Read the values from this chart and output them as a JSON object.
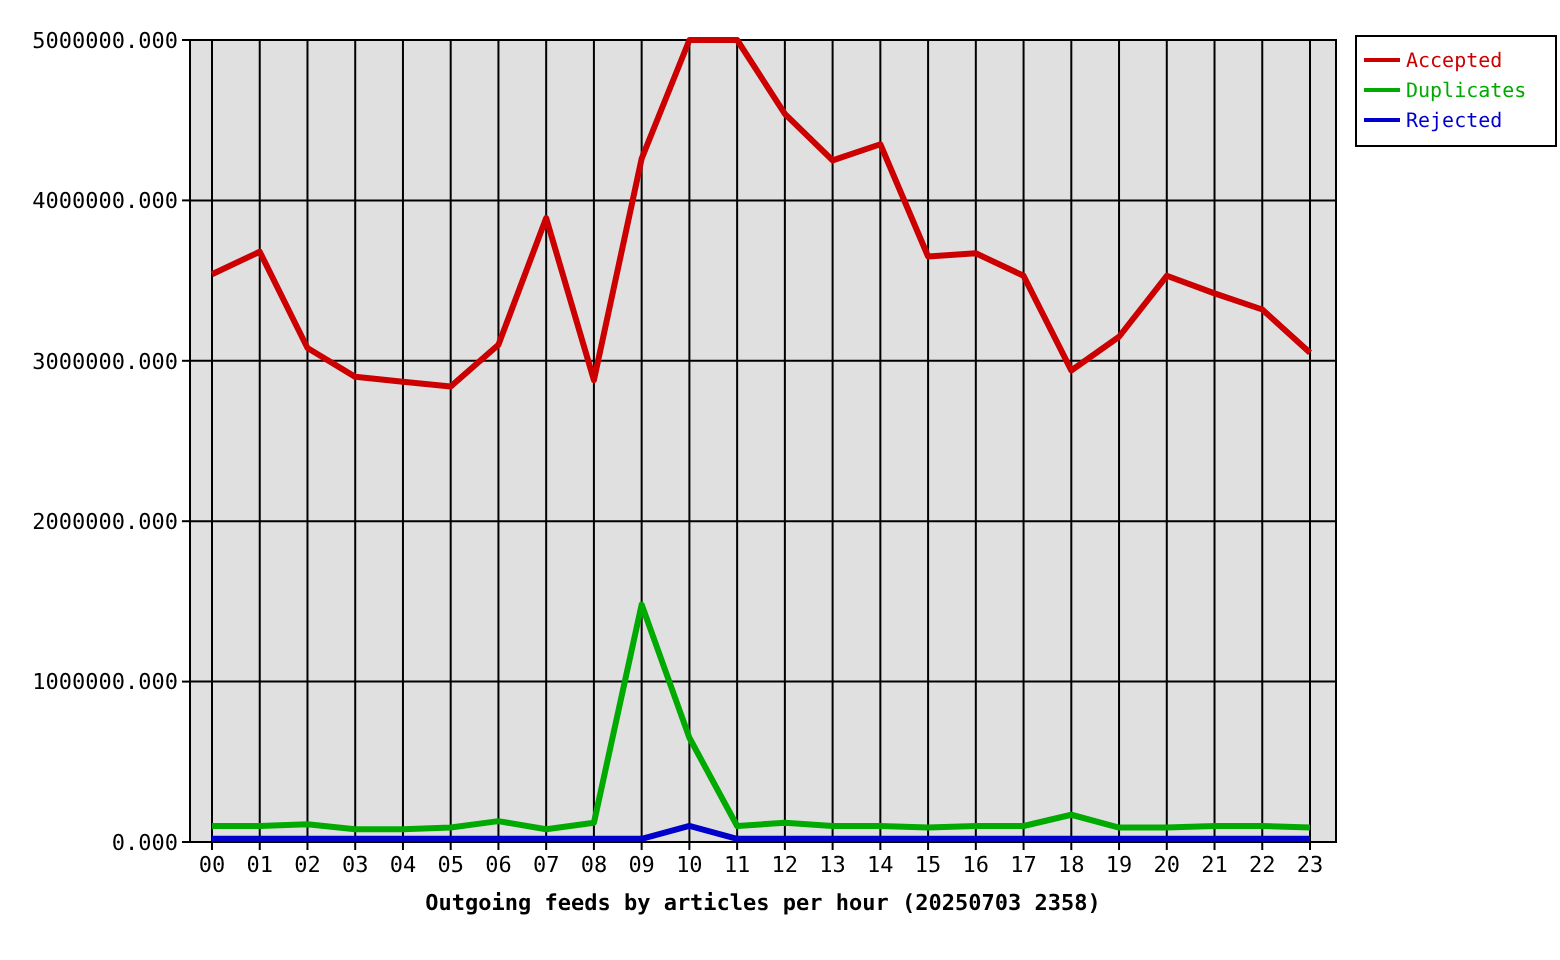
{
  "chart_data": {
    "type": "line",
    "xlabel": "Outgoing feeds by articles per hour (20250703 2358)",
    "categories": [
      "00",
      "01",
      "02",
      "03",
      "04",
      "05",
      "06",
      "07",
      "08",
      "09",
      "10",
      "11",
      "12",
      "13",
      "14",
      "15",
      "16",
      "17",
      "18",
      "19",
      "20",
      "21",
      "22",
      "23"
    ],
    "series": [
      {
        "name": "Accepted",
        "color": "#cc0000",
        "values": [
          3540000,
          3680000,
          3080000,
          2900000,
          2870000,
          2840000,
          3100000,
          3890000,
          2880000,
          4260000,
          5000000,
          5000000,
          4540000,
          4250000,
          4350000,
          3650000,
          3670000,
          3530000,
          2940000,
          3150000,
          3530000,
          3420000,
          3320000,
          3050000
        ]
      },
      {
        "name": "Duplicates",
        "color": "#00aa00",
        "values": [
          100000,
          100000,
          110000,
          80000,
          80000,
          90000,
          130000,
          80000,
          120000,
          1480000,
          650000,
          100000,
          120000,
          100000,
          100000,
          90000,
          100000,
          100000,
          170000,
          90000,
          90000,
          100000,
          100000,
          90000
        ]
      },
      {
        "name": "Rejected",
        "color": "#0000cc",
        "values": [
          20000,
          20000,
          20000,
          20000,
          20000,
          20000,
          20000,
          20000,
          20000,
          20000,
          100000,
          20000,
          20000,
          20000,
          20000,
          20000,
          20000,
          20000,
          20000,
          20000,
          20000,
          20000,
          20000,
          20000
        ]
      }
    ],
    "ylim": [
      0,
      5000000
    ],
    "yticks": [
      {
        "value": 0,
        "label": "0.000"
      },
      {
        "value": 1000000,
        "label": "1000000.000"
      },
      {
        "value": 2000000,
        "label": "2000000.000"
      },
      {
        "value": 3000000,
        "label": "3000000.000"
      },
      {
        "value": 4000000,
        "label": "4000000.000"
      },
      {
        "value": 5000000,
        "label": "5000000.000"
      }
    ],
    "grid": true,
    "legend": "top right"
  }
}
